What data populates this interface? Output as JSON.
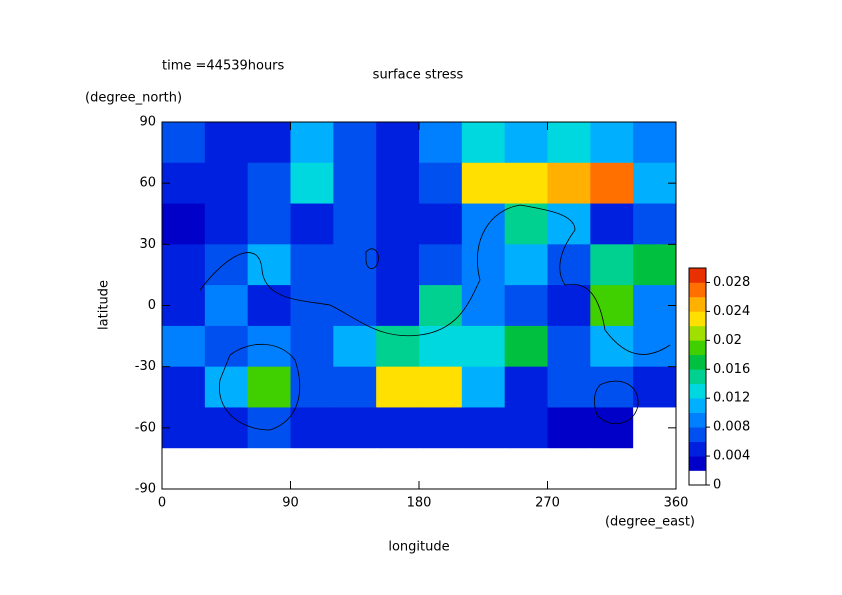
{
  "chart_data": {
    "type": "heatmap",
    "title": "surface stress",
    "subtitle": "time =44539hours",
    "x_label": "longitude",
    "x_unit": "(degree_east)",
    "y_label": "latitude",
    "y_unit": "(degree_north)",
    "x": [
      15,
      45,
      75,
      105,
      135,
      165,
      195,
      225,
      255,
      285,
      315,
      345
    ],
    "y": [
      80,
      60,
      40,
      20,
      0,
      -20,
      -40,
      -60,
      -80
    ],
    "cell_width": 30,
    "cell_height": 20,
    "values": [
      [
        0.006,
        0.005,
        0.004,
        0.01,
        0.006,
        0.004,
        0.008,
        0.012,
        0.01,
        0.012,
        0.01,
        0.008
      ],
      [
        0.004,
        0.004,
        0.006,
        0.012,
        0.006,
        0.004,
        0.006,
        0.022,
        0.022,
        0.024,
        0.026,
        0.01
      ],
      [
        0.002,
        0.004,
        0.006,
        0.004,
        0.006,
        0.004,
        0.004,
        0.008,
        0.014,
        0.01,
        0.004,
        0.006
      ],
      [
        0.004,
        0.006,
        0.01,
        0.006,
        0.006,
        0.004,
        0.006,
        0.008,
        0.01,
        0.006,
        0.014,
        0.016
      ],
      [
        0.004,
        0.008,
        0.004,
        0.006,
        0.006,
        0.004,
        0.014,
        0.008,
        0.006,
        0.004,
        0.018,
        0.008
      ],
      [
        0.008,
        0.006,
        0.008,
        0.006,
        0.01,
        0.014,
        0.012,
        0.012,
        0.016,
        0.006,
        0.01,
        0.008
      ],
      [
        0.004,
        0.01,
        0.018,
        0.006,
        0.006,
        0.022,
        0.022,
        0.01,
        0.004,
        0.006,
        0.006,
        0.004
      ],
      [
        0.004,
        0.004,
        0.006,
        0.004,
        0.004,
        0.004,
        0.004,
        0.004,
        0.004,
        0.002,
        0.002,
        0
      ],
      [
        0,
        0,
        0,
        0,
        0,
        0,
        0,
        0,
        0,
        0,
        0,
        0
      ]
    ],
    "xlim": [
      0,
      360
    ],
    "xticks": [
      0,
      90,
      180,
      270,
      360
    ],
    "ylim": [
      -90,
      90
    ],
    "yticks": [
      -90,
      -60,
      -30,
      0,
      30,
      60,
      90
    ],
    "levels": [
      0,
      0.002,
      0.004,
      0.006,
      0.008,
      0.01,
      0.012,
      0.014,
      0.016,
      0.018,
      0.02,
      0.022,
      0.024,
      0.026,
      0.028,
      0.03
    ],
    "colors": [
      "#ffffff",
      "#0000c8",
      "#0020e0",
      "#0050f0",
      "#0080ff",
      "#00b0ff",
      "#00d8e0",
      "#00d090",
      "#00c040",
      "#40d000",
      "#a0e000",
      "#ffe000",
      "#ffb000",
      "#ff7000",
      "#e83000"
    ],
    "clim": [
      0,
      0.03
    ],
    "cticks": [
      0,
      0.004,
      0.008,
      0.012,
      0.016,
      0.02,
      0.024,
      0.028
    ]
  }
}
